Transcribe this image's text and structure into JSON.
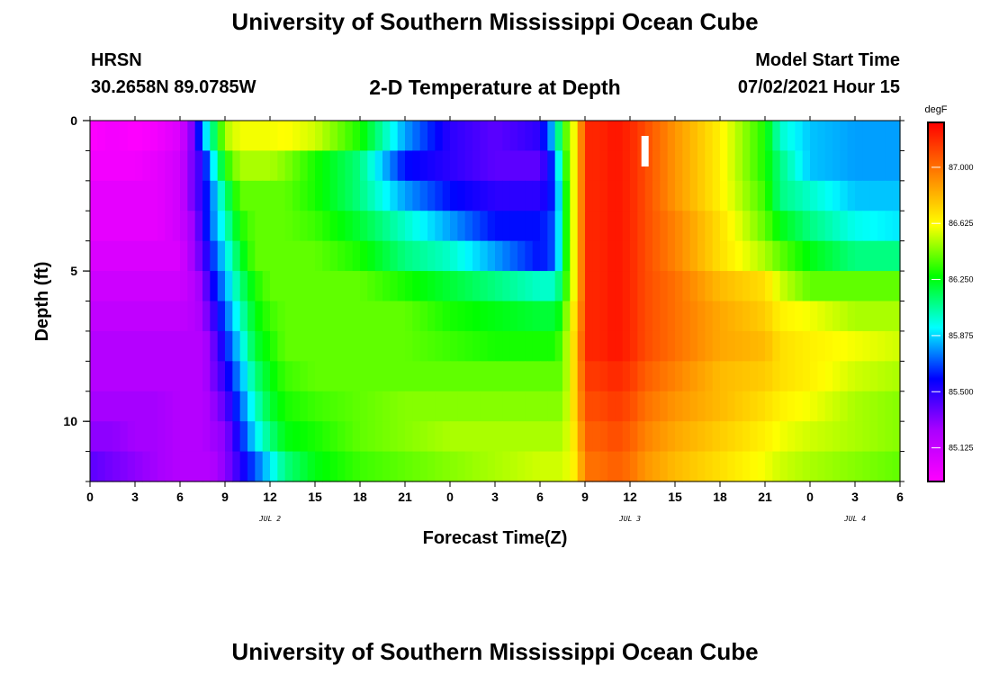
{
  "header": {
    "title": "University of Southern Mississippi Ocean Cube",
    "station": "HRSN",
    "coordinates": "30.2658N  89.0785W",
    "model_start_label": "Model Start Time",
    "model_start_value": "07/02/2021 Hour 15"
  },
  "footer": {
    "title": "University of Southern Mississippi Ocean Cube"
  },
  "chart_data": {
    "type": "heatmap",
    "title": "2-D Temperature at Depth",
    "xlabel": "Forecast Time(Z)",
    "ylabel": "Depth (ft)",
    "x_tick_labels": [
      "0",
      "3",
      "6",
      "9",
      "12",
      "15",
      "18",
      "21",
      "0",
      "3",
      "6",
      "9",
      "12",
      "15",
      "18",
      "21",
      "0",
      "3",
      "6"
    ],
    "date_labels": [
      {
        "label": "JUL 2",
        "hour": 12
      },
      {
        "label": "JUL 3",
        "hour": 36
      },
      {
        "label": "JUL 4",
        "hour": 51
      }
    ],
    "x_range_hours": [
      0,
      54
    ],
    "y_ticks": [
      0,
      5,
      10
    ],
    "y_range_ft": [
      0,
      12
    ],
    "y_inverted": true,
    "colorbar": {
      "unit": "degF",
      "ticks": [
        "87.000",
        "86.625",
        "86.250",
        "85.875",
        "85.500",
        "85.125"
      ],
      "range": [
        84.9,
        87.3
      ],
      "colors": [
        "#ff00ff",
        "#aa00ff",
        "#0000ff",
        "#00ffff",
        "#00ff00",
        "#ffff00",
        "#ff8000",
        "#ff0000"
      ]
    },
    "depth_levels_ft": [
      0.5,
      1.5,
      2.5,
      3.5,
      4.5,
      5.5,
      6.5,
      7.5,
      8.5,
      9.5,
      10.5,
      11.5
    ],
    "time_hours": [
      0,
      1.5,
      3,
      4.5,
      6,
      7,
      7.5,
      8,
      9,
      10,
      11,
      12,
      13,
      15,
      18,
      21,
      24,
      27,
      30,
      31,
      31.5,
      32,
      32.5,
      33,
      34,
      35,
      36,
      37,
      39,
      42,
      45,
      46,
      48,
      51,
      54
    ],
    "temperatures_degF": [
      [
        84.9,
        84.95,
        84.9,
        84.95,
        85.05,
        85.4,
        85.8,
        86.0,
        86.5,
        86.6,
        86.6,
        86.6,
        86.62,
        86.55,
        86.3,
        85.8,
        85.5,
        85.4,
        85.5,
        85.9,
        86.3,
        86.5,
        86.7,
        87.2,
        87.2,
        87.25,
        87.2,
        87.1,
        86.9,
        86.65,
        86.3,
        86.0,
        85.85,
        85.8,
        85.8
      ],
      [
        84.95,
        84.95,
        84.95,
        85.0,
        85.1,
        85.4,
        85.5,
        85.8,
        86.3,
        86.5,
        86.5,
        86.5,
        86.45,
        86.3,
        86.1,
        85.6,
        85.5,
        85.4,
        85.4,
        85.7,
        86.2,
        86.5,
        86.7,
        87.2,
        87.2,
        87.25,
        87.2,
        87.1,
        86.9,
        86.65,
        86.3,
        86.1,
        85.85,
        85.8,
        85.8
      ],
      [
        85.0,
        85.0,
        85.0,
        85.0,
        85.1,
        85.4,
        85.5,
        85.7,
        86.1,
        86.4,
        86.4,
        86.4,
        86.4,
        86.3,
        86.1,
        85.8,
        85.6,
        85.5,
        85.5,
        85.65,
        86.1,
        86.5,
        86.7,
        87.2,
        87.2,
        87.25,
        87.2,
        87.1,
        86.9,
        86.65,
        86.35,
        86.1,
        86.0,
        85.85,
        85.85
      ],
      [
        85.0,
        85.0,
        85.0,
        85.0,
        85.1,
        85.3,
        85.5,
        85.7,
        86.0,
        86.3,
        86.4,
        86.4,
        86.4,
        86.35,
        86.2,
        86.0,
        85.8,
        85.6,
        85.6,
        85.7,
        86.1,
        86.5,
        86.7,
        87.2,
        87.2,
        87.25,
        87.2,
        87.1,
        86.95,
        86.7,
        86.4,
        86.25,
        86.1,
        85.95,
        85.9
      ],
      [
        85.05,
        85.05,
        85.05,
        85.05,
        85.05,
        85.3,
        85.4,
        85.6,
        85.9,
        86.2,
        86.4,
        86.4,
        86.4,
        86.4,
        86.3,
        86.1,
        86.0,
        85.8,
        85.6,
        85.7,
        86.1,
        86.5,
        86.7,
        87.2,
        87.2,
        87.25,
        87.2,
        87.1,
        86.95,
        86.7,
        86.5,
        86.4,
        86.25,
        86.1,
        86.1
      ],
      [
        85.1,
        85.1,
        85.1,
        85.1,
        85.1,
        85.2,
        85.3,
        85.5,
        85.8,
        86.1,
        86.3,
        86.4,
        86.4,
        86.4,
        86.4,
        86.3,
        86.2,
        86.1,
        86.0,
        86.0,
        86.2,
        86.5,
        86.7,
        87.2,
        87.2,
        87.25,
        87.2,
        87.1,
        87.0,
        86.8,
        86.7,
        86.55,
        86.4,
        86.4,
        86.4
      ],
      [
        85.15,
        85.15,
        85.15,
        85.15,
        85.15,
        85.2,
        85.25,
        85.4,
        85.7,
        86.0,
        86.25,
        86.35,
        86.4,
        86.4,
        86.4,
        86.4,
        86.3,
        86.25,
        86.2,
        86.2,
        86.3,
        86.6,
        86.75,
        87.2,
        87.2,
        87.25,
        87.2,
        87.1,
        87.0,
        86.85,
        86.75,
        86.65,
        86.6,
        86.5,
        86.5
      ],
      [
        85.2,
        85.2,
        85.2,
        85.2,
        85.2,
        85.2,
        85.2,
        85.3,
        85.6,
        85.9,
        86.2,
        86.3,
        86.4,
        86.4,
        86.4,
        86.4,
        86.35,
        86.3,
        86.3,
        86.3,
        86.4,
        86.6,
        86.8,
        87.2,
        87.2,
        87.25,
        87.2,
        87.1,
        87.0,
        86.85,
        86.8,
        86.7,
        86.65,
        86.6,
        86.55
      ],
      [
        85.2,
        85.2,
        85.2,
        85.2,
        85.2,
        85.2,
        85.2,
        85.3,
        85.5,
        85.8,
        86.1,
        86.25,
        86.35,
        86.4,
        86.4,
        86.4,
        86.4,
        86.4,
        86.4,
        86.4,
        86.4,
        86.6,
        86.8,
        87.15,
        87.15,
        87.2,
        87.15,
        87.05,
        86.95,
        86.8,
        86.75,
        86.7,
        86.65,
        86.55,
        86.5
      ],
      [
        85.25,
        85.25,
        85.25,
        85.25,
        85.2,
        85.2,
        85.2,
        85.25,
        85.4,
        85.7,
        86.0,
        86.2,
        86.3,
        86.35,
        86.4,
        86.45,
        86.45,
        86.45,
        86.45,
        86.45,
        86.45,
        86.6,
        86.8,
        87.1,
        87.1,
        87.15,
        87.1,
        87.0,
        86.9,
        86.8,
        86.7,
        86.65,
        86.6,
        86.5,
        86.45
      ],
      [
        85.3,
        85.3,
        85.25,
        85.25,
        85.2,
        85.2,
        85.2,
        85.25,
        85.3,
        85.6,
        85.9,
        86.1,
        86.25,
        86.3,
        86.4,
        86.45,
        86.5,
        86.5,
        86.5,
        86.5,
        86.5,
        86.6,
        86.75,
        87.05,
        87.05,
        87.1,
        87.05,
        86.95,
        86.85,
        86.75,
        86.65,
        86.6,
        86.55,
        86.5,
        86.45
      ],
      [
        85.4,
        85.35,
        85.3,
        85.25,
        85.2,
        85.2,
        85.2,
        85.2,
        85.3,
        85.5,
        85.7,
        85.9,
        86.1,
        86.25,
        86.35,
        86.4,
        86.45,
        86.5,
        86.55,
        86.55,
        86.55,
        86.6,
        86.7,
        87.0,
        87.0,
        87.05,
        87.0,
        86.9,
        86.8,
        86.7,
        86.6,
        86.55,
        86.5,
        86.45,
        86.4
      ]
    ],
    "marker": {
      "hour": 37
    }
  }
}
